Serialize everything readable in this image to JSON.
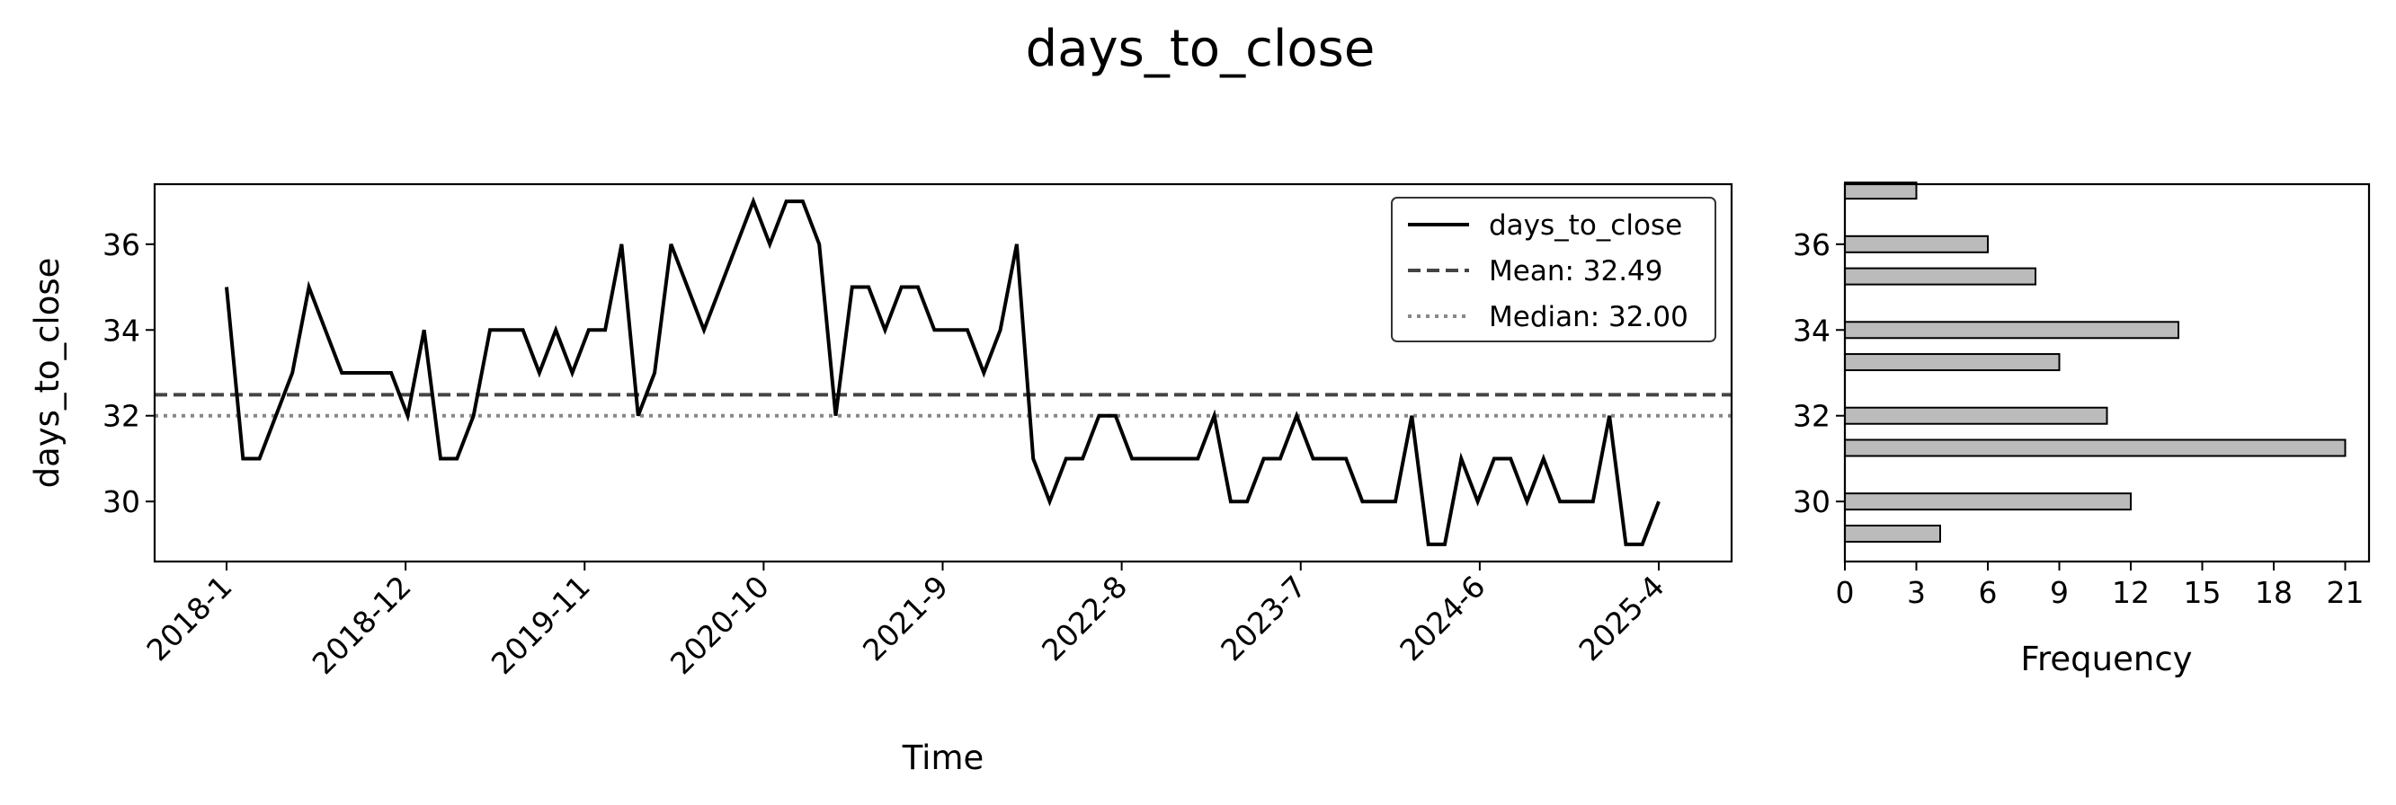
{
  "title": "days_to_close",
  "line_chart": {
    "type": "line",
    "xlabel": "Time",
    "ylabel": "days_to_close",
    "x_ticks": [
      "2018-1",
      "2018-12",
      "2019-11",
      "2020-10",
      "2021-9",
      "2022-8",
      "2023-7",
      "2024-6",
      "2025-4"
    ],
    "y_ticks": [
      30,
      32,
      34,
      36
    ],
    "ylim": [
      28.6,
      37.4
    ],
    "grid": false,
    "legend": {
      "placement": "top-right",
      "entries": [
        "days_to_close",
        "Mean: 32.49",
        "Median: 32.00"
      ]
    },
    "colors": {
      "line": "#000000",
      "mean": "#444444",
      "median": "#888888"
    },
    "mean": 32.49,
    "median": 32.0,
    "series": [
      {
        "name": "days_to_close",
        "values": [
          35,
          31,
          31,
          32,
          33,
          35,
          34,
          33,
          33,
          33,
          33,
          32,
          34,
          31,
          31,
          32,
          34,
          34,
          34,
          33,
          34,
          33,
          34,
          34,
          36,
          32,
          33,
          36,
          35,
          34,
          35,
          36,
          37,
          36,
          37,
          37,
          36,
          32,
          35,
          35,
          34,
          35,
          35,
          34,
          34,
          34,
          33,
          34,
          36,
          31,
          30,
          31,
          31,
          32,
          32,
          31,
          31,
          31,
          31,
          31,
          32,
          30,
          30,
          31,
          31,
          32,
          31,
          31,
          31,
          30,
          30,
          30,
          32,
          29,
          29,
          31,
          30,
          31,
          31,
          30,
          31,
          30,
          30,
          30,
          32,
          29,
          29,
          30
        ]
      }
    ]
  },
  "histogram": {
    "type": "bar",
    "orientation": "horizontal",
    "xlabel": "Frequency",
    "x_ticks": [
      0,
      3,
      6,
      9,
      12,
      15,
      18,
      21
    ],
    "xlim": [
      0,
      22
    ],
    "y_ticks": [
      30,
      32,
      34,
      36
    ],
    "color": "#bbbbbb",
    "bins": [
      {
        "center": 29.25,
        "count": 4
      },
      {
        "center": 30.0,
        "count": 12
      },
      {
        "center": 31.25,
        "count": 21
      },
      {
        "center": 32.0,
        "count": 11
      },
      {
        "center": 33.25,
        "count": 9
      },
      {
        "center": 34.0,
        "count": 14
      },
      {
        "center": 35.25,
        "count": 8
      },
      {
        "center": 36.0,
        "count": 6
      },
      {
        "center": 37.25,
        "count": 3
      }
    ]
  }
}
